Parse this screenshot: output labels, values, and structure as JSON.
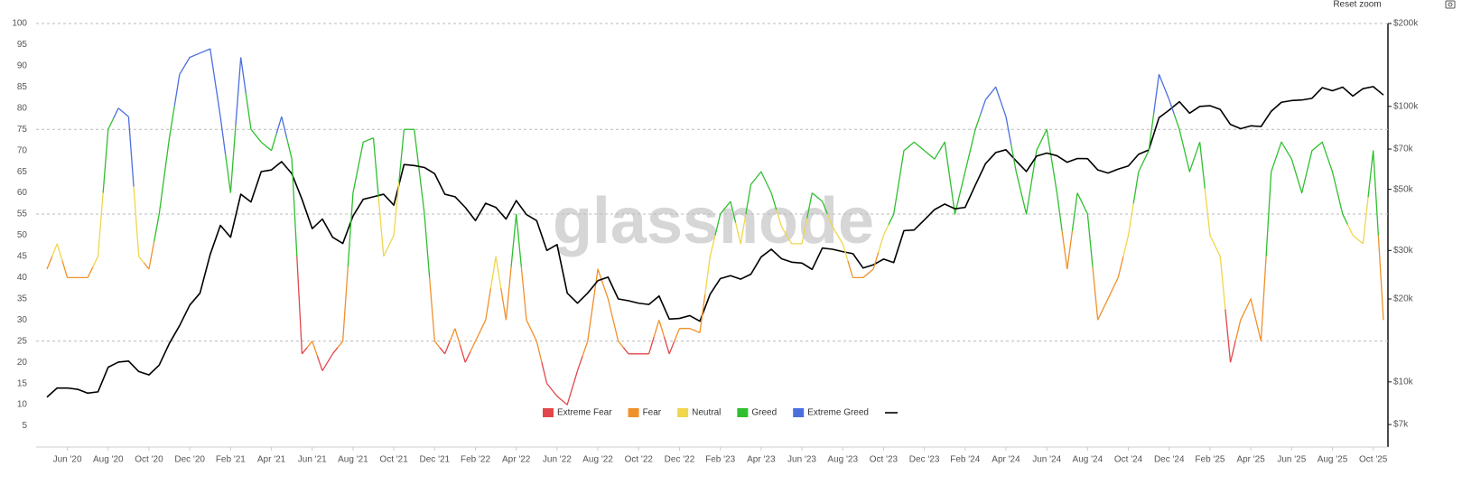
{
  "toolbar": {
    "reset_zoom": "Reset zoom"
  },
  "chart_data": {
    "type": "line",
    "watermark": "glassnode",
    "categories": [
      null,
      null,
      "Jun '20",
      null,
      null,
      null,
      "Aug '20",
      null,
      null,
      null,
      "Oct '20",
      null,
      null,
      null,
      "Dec '20",
      null,
      null,
      null,
      "Feb '21",
      null,
      null,
      null,
      "Apr '21",
      null,
      null,
      null,
      "Jun '21",
      null,
      null,
      null,
      "Aug '21",
      null,
      null,
      null,
      "Oct '21",
      null,
      null,
      null,
      "Dec '21",
      null,
      null,
      null,
      "Feb '22",
      null,
      null,
      null,
      "Apr '22",
      null,
      null,
      null,
      "Jun '22",
      null,
      null,
      null,
      "Aug '22",
      null,
      null,
      null,
      "Oct '22",
      null,
      null,
      null,
      "Dec '22",
      null,
      null,
      null,
      "Feb '23",
      null,
      null,
      null,
      "Apr '23",
      null,
      null,
      null,
      "Jun '23",
      null,
      null,
      null,
      "Aug '23",
      null,
      null,
      null,
      "Oct '23",
      null,
      null,
      null,
      "Dec '23",
      null,
      null,
      null,
      "Feb '24",
      null,
      null,
      null,
      "Apr '24",
      null,
      null,
      null,
      "Jun '24",
      null,
      null,
      null,
      "Aug '24",
      null,
      null,
      null,
      "Oct '24",
      null,
      null,
      null,
      "Dec '24",
      null,
      null,
      null,
      "Feb '25",
      null,
      null,
      null,
      "Apr '25",
      null,
      null,
      null,
      "Jun '25",
      null,
      null,
      null,
      "Aug '25",
      null,
      null,
      null,
      "Oct '25",
      null
    ],
    "series": [
      {
        "name": "Extreme Fear",
        "color": "#e2474a",
        "values": [
          null,
          null,
          null,
          null,
          null,
          null,
          null,
          null,
          null,
          null,
          null,
          null,
          null,
          null,
          null,
          null,
          null,
          null,
          null,
          null,
          null,
          null,
          null,
          null,
          null,
          22,
          null,
          18,
          22,
          null,
          null,
          null,
          null,
          null,
          null,
          null,
          null,
          null,
          null,
          22,
          null,
          20,
          null,
          null,
          null,
          null,
          null,
          null,
          null,
          15,
          12,
          10,
          18,
          null,
          null,
          null,
          null,
          22,
          22,
          22,
          null,
          22,
          null,
          null,
          null,
          null,
          null,
          null,
          null,
          null,
          null,
          null,
          null,
          null,
          null,
          null,
          null,
          null,
          null,
          null,
          null,
          null,
          null,
          null,
          null,
          null,
          null,
          null,
          null,
          null,
          null,
          null,
          null,
          null,
          null,
          null,
          null,
          null,
          null,
          null,
          null,
          null,
          null,
          null,
          null,
          null,
          null,
          null,
          null,
          null,
          null,
          null,
          null,
          null,
          null,
          null,
          20,
          null,
          null,
          null,
          null,
          null,
          null,
          null,
          null,
          null,
          null,
          null,
          null,
          null,
          null,
          null
        ]
      },
      {
        "name": "Fear",
        "color": "#f0902a",
        "values": [
          42,
          null,
          40,
          40,
          40,
          null,
          null,
          null,
          null,
          null,
          42,
          null,
          null,
          null,
          null,
          null,
          null,
          null,
          null,
          null,
          null,
          null,
          null,
          null,
          null,
          null,
          25,
          null,
          null,
          25,
          null,
          null,
          null,
          null,
          null,
          null,
          null,
          null,
          25,
          null,
          28,
          null,
          25,
          30,
          null,
          30,
          null,
          30,
          25,
          null,
          null,
          null,
          null,
          25,
          42,
          35,
          25,
          null,
          null,
          null,
          30,
          null,
          28,
          28,
          27,
          null,
          null,
          null,
          null,
          null,
          null,
          null,
          null,
          null,
          null,
          null,
          null,
          null,
          null,
          40,
          40,
          42,
          null,
          null,
          null,
          null,
          null,
          null,
          null,
          null,
          null,
          null,
          null,
          null,
          null,
          null,
          null,
          null,
          null,
          null,
          42,
          null,
          null,
          30,
          35,
          40,
          null,
          null,
          null,
          null,
          null,
          null,
          null,
          null,
          null,
          null,
          null,
          30,
          35,
          25,
          null,
          null,
          null,
          null,
          null,
          null,
          null,
          null,
          null,
          null,
          null,
          30
        ]
      },
      {
        "name": "Neutral",
        "color": "#f0d64c",
        "values": [
          null,
          48,
          null,
          null,
          null,
          45,
          null,
          null,
          null,
          45,
          null,
          null,
          null,
          null,
          null,
          null,
          null,
          null,
          null,
          null,
          null,
          null,
          null,
          null,
          null,
          null,
          null,
          null,
          null,
          null,
          null,
          null,
          null,
          45,
          50,
          null,
          null,
          null,
          null,
          null,
          null,
          null,
          null,
          null,
          45,
          null,
          null,
          null,
          null,
          null,
          null,
          null,
          null,
          null,
          null,
          null,
          null,
          null,
          null,
          null,
          null,
          null,
          null,
          null,
          null,
          45,
          null,
          null,
          48,
          null,
          null,
          null,
          52,
          48,
          48,
          null,
          null,
          52,
          48,
          null,
          null,
          null,
          50,
          null,
          null,
          null,
          null,
          null,
          null,
          null,
          null,
          null,
          null,
          null,
          null,
          null,
          null,
          null,
          null,
          null,
          null,
          null,
          null,
          null,
          null,
          null,
          50,
          null,
          null,
          null,
          null,
          null,
          null,
          null,
          50,
          45,
          null,
          null,
          null,
          null,
          null,
          null,
          null,
          null,
          null,
          null,
          null,
          null,
          50,
          48,
          null,
          null
        ]
      },
      {
        "name": "Greed",
        "color": "#2fbf2f",
        "values": [
          null,
          null,
          null,
          null,
          null,
          null,
          75,
          null,
          null,
          null,
          null,
          55,
          73,
          null,
          null,
          null,
          null,
          null,
          60,
          null,
          75,
          72,
          70,
          null,
          68,
          null,
          null,
          null,
          null,
          null,
          60,
          72,
          73,
          null,
          null,
          75,
          75,
          55,
          null,
          null,
          null,
          null,
          null,
          null,
          null,
          null,
          55,
          null,
          null,
          null,
          null,
          null,
          null,
          null,
          null,
          null,
          null,
          null,
          null,
          null,
          null,
          null,
          null,
          null,
          null,
          null,
          55,
          58,
          null,
          62,
          65,
          60,
          null,
          null,
          null,
          60,
          58,
          null,
          null,
          null,
          null,
          null,
          null,
          55,
          70,
          72,
          70,
          68,
          72,
          55,
          65,
          75,
          null,
          null,
          null,
          65,
          55,
          70,
          75,
          60,
          null,
          60,
          55,
          null,
          null,
          null,
          null,
          65,
          70,
          null,
          null,
          75,
          65,
          72,
          null,
          null,
          null,
          null,
          null,
          null,
          65,
          72,
          68,
          60,
          70,
          72,
          65,
          55,
          null,
          null,
          70,
          null
        ]
      },
      {
        "name": "Extreme Greed",
        "color": "#4c6fe0",
        "values": [
          null,
          null,
          null,
          null,
          null,
          null,
          null,
          80,
          78,
          null,
          null,
          null,
          null,
          88,
          92,
          93,
          94,
          78,
          null,
          92,
          null,
          null,
          null,
          78,
          null,
          null,
          null,
          null,
          null,
          null,
          null,
          null,
          null,
          null,
          null,
          null,
          null,
          null,
          null,
          null,
          null,
          null,
          null,
          null,
          null,
          null,
          null,
          null,
          null,
          null,
          null,
          null,
          null,
          null,
          null,
          null,
          null,
          null,
          null,
          null,
          null,
          null,
          null,
          null,
          null,
          null,
          null,
          null,
          null,
          null,
          null,
          null,
          null,
          null,
          null,
          null,
          null,
          null,
          null,
          null,
          null,
          null,
          null,
          null,
          null,
          null,
          null,
          null,
          null,
          null,
          null,
          null,
          82,
          85,
          78,
          null,
          null,
          null,
          null,
          null,
          null,
          null,
          null,
          null,
          null,
          null,
          null,
          null,
          null,
          88,
          82,
          null,
          null,
          null,
          null,
          null,
          null,
          null,
          null,
          null,
          null,
          null,
          null,
          null,
          null,
          null,
          null,
          null,
          null,
          null,
          null,
          null
        ]
      },
      {
        "color": "#000000",
        "axis": "y2",
        "values": [
          8800,
          9500,
          9500,
          9400,
          9100,
          9200,
          11300,
          11800,
          11900,
          10900,
          10600,
          11500,
          13800,
          16000,
          19000,
          21000,
          29000,
          37000,
          33500,
          48000,
          45000,
          58000,
          58800,
          63000,
          57000,
          46000,
          36000,
          39000,
          33500,
          31800,
          40000,
          46000,
          47000,
          48000,
          43800,
          61500,
          61000,
          60000,
          57000,
          48000,
          47000,
          43000,
          38500,
          44500,
          43000,
          39000,
          45500,
          40500,
          38500,
          30000,
          31500,
          21000,
          19300,
          21000,
          23300,
          24000,
          20000,
          19700,
          19300,
          19100,
          20500,
          16900,
          17000,
          17400,
          16600,
          20800,
          23700,
          24300,
          23600,
          24600,
          28400,
          30300,
          28000,
          27200,
          27000,
          25600,
          30600,
          30300,
          29700,
          29200,
          25900,
          26600,
          27900,
          27100,
          35400,
          35600,
          38700,
          42200,
          44200,
          42500,
          43000,
          51800,
          62000,
          68000,
          69600,
          63400,
          58000,
          66000,
          67700,
          66200,
          62700,
          64700,
          64600,
          58800,
          57300,
          59200,
          60800,
          67000,
          69500,
          91000,
          97000,
          104000,
          94500,
          100000,
          100600,
          97500,
          86000,
          83000,
          85000,
          84500,
          96000,
          103500,
          105000,
          105500,
          107000,
          117000,
          114000,
          117500,
          109000,
          116000,
          118000,
          110000
        ]
      }
    ],
    "ylim": [
      0,
      100
    ],
    "yticks": [
      5,
      10,
      15,
      20,
      25,
      30,
      35,
      40,
      45,
      50,
      55,
      60,
      65,
      70,
      75,
      80,
      85,
      90,
      95,
      100
    ],
    "y2log": true,
    "y2lim": [
      5800,
      200000
    ],
    "y2ticks": [
      {
        "value": 7000,
        "label": "$7k"
      },
      {
        "value": 10000,
        "label": "$10k"
      },
      {
        "value": 20000,
        "label": "$20k"
      },
      {
        "value": 30000,
        "label": "$30k"
      },
      {
        "value": 50000,
        "label": "$50k"
      },
      {
        "value": 70000,
        "label": "$70k"
      },
      {
        "value": 100000,
        "label": "$100k"
      },
      {
        "value": 200000,
        "label": "$200k"
      }
    ],
    "reference_lines": [
      25,
      55,
      75,
      100
    ],
    "legend": "bottom"
  }
}
